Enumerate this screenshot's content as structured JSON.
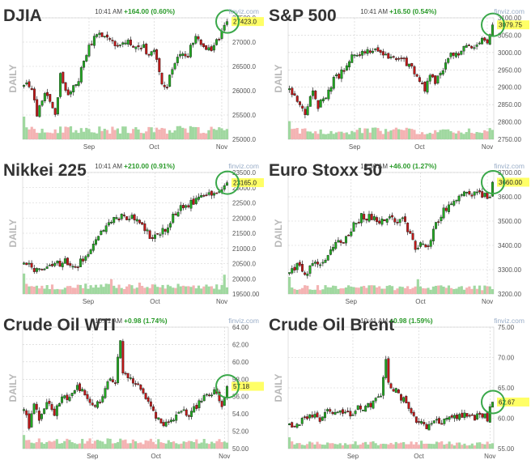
{
  "colors": {
    "up": "#22aa22",
    "down": "#c01818",
    "wick": "#222222",
    "vol_up": "#8fd18f",
    "vol_down": "#f2a6a6",
    "grid": "#e6e6e6",
    "grid_dash": "#d0d0d0",
    "change": "#2a9a2a",
    "time": "#444444",
    "watermark": "#9aaec8",
    "price_tag": "#ffff66",
    "circle": "#3aa84a",
    "axis_text": "#555555",
    "daily_text": "#b8b8b8"
  },
  "common": {
    "daily_label": "DAILY",
    "watermark": "finviz.com"
  },
  "chart_data": [
    {
      "type": "candlestick",
      "title": "DJIA",
      "time": "10:41 AM",
      "change": "+164.00 (0.60%)",
      "last_price_label": "27423.0",
      "last_price": 27423,
      "ylim": [
        25000,
        27500
      ],
      "yticks": [
        25000,
        25500,
        26000,
        26500,
        27000,
        27500
      ],
      "ytick_labels": [
        "25000.0",
        "25500.0",
        "26000.0",
        "26500.0",
        "27000.0",
        "27500.0"
      ],
      "xtick_labels": [
        "Sep",
        "Oct",
        "Nov"
      ],
      "xtick_positions": [
        25,
        50,
        76
      ],
      "n_candles": 79,
      "anchors": [
        [
          0,
          26150
        ],
        [
          3,
          26050
        ],
        [
          5,
          25500
        ],
        [
          8,
          26000
        ],
        [
          12,
          25550
        ],
        [
          14,
          26300
        ],
        [
          17,
          25900
        ],
        [
          21,
          26250
        ],
        [
          24,
          26800
        ],
        [
          28,
          27200
        ],
        [
          31,
          27100
        ],
        [
          35,
          26950
        ],
        [
          39,
          27050
        ],
        [
          42,
          26950
        ],
        [
          46,
          26900
        ],
        [
          48,
          26750
        ],
        [
          50,
          26850
        ],
        [
          53,
          26100
        ],
        [
          55,
          26050
        ],
        [
          57,
          26500
        ],
        [
          60,
          26800
        ],
        [
          63,
          26750
        ],
        [
          66,
          27100
        ],
        [
          69,
          26900
        ],
        [
          72,
          26850
        ],
        [
          75,
          27050
        ],
        [
          78,
          27423
        ]
      ],
      "vol_level": 0.45,
      "spikes": [
        [
          0,
          1.0
        ],
        [
          3,
          0.55
        ],
        [
          56,
          0.4
        ]
      ]
    },
    {
      "type": "candlestick",
      "title": "S&P 500",
      "time": "10:41 AM",
      "change": "+16.50 (0.54%)",
      "last_price_label": "3079.75",
      "last_price": 3079.75,
      "ylim": [
        2750,
        3100
      ],
      "yticks": [
        2750,
        2800,
        2850,
        2900,
        2950,
        3000,
        3050,
        3100
      ],
      "ytick_labels": [
        "2750.00",
        "2800.00",
        "2850.00",
        "2900.00",
        "2950.00",
        "3000.00",
        "3050.00",
        "3100.00"
      ],
      "xtick_labels": [
        "Sep",
        "Oct",
        "Nov"
      ],
      "xtick_positions": [
        25,
        50,
        76
      ],
      "n_candles": 79,
      "anchors": [
        [
          0,
          2900
        ],
        [
          3,
          2860
        ],
        [
          6,
          2830
        ],
        [
          9,
          2890
        ],
        [
          11,
          2840
        ],
        [
          14,
          2880
        ],
        [
          17,
          2920
        ],
        [
          20,
          2940
        ],
        [
          24,
          2990
        ],
        [
          28,
          3005
        ],
        [
          32,
          3010
        ],
        [
          36,
          2995
        ],
        [
          40,
          2990
        ],
        [
          44,
          2975
        ],
        [
          47,
          2960
        ],
        [
          49,
          2930
        ],
        [
          52,
          2895
        ],
        [
          54,
          2940
        ],
        [
          56,
          2920
        ],
        [
          59,
          2950
        ],
        [
          62,
          2995
        ],
        [
          65,
          3000
        ],
        [
          68,
          3020
        ],
        [
          71,
          3015
        ],
        [
          74,
          3040
        ],
        [
          76,
          3035
        ],
        [
          78,
          3079.75
        ]
      ],
      "vol_level": 0.4,
      "spikes": [
        [
          0,
          0.8
        ],
        [
          3,
          0.5
        ]
      ]
    },
    {
      "type": "candlestick",
      "title": "Nikkei 225",
      "time": "10:41 AM",
      "change": "+210.00 (0.91%)",
      "last_price_label": "23165.0",
      "last_price": 23165,
      "ylim": [
        19500,
        23500
      ],
      "yticks": [
        19500,
        20000,
        20500,
        21000,
        21500,
        22000,
        22500,
        23000,
        23500
      ],
      "ytick_labels": [
        "19500.00",
        "20000.0",
        "20500.0",
        "21000.0",
        "21500.0",
        "22000.0",
        "22500.0",
        "23000.0",
        "23500.0"
      ],
      "xtick_labels": [
        "Sep",
        "Oct",
        "Nov"
      ],
      "xtick_positions": [
        25,
        51,
        77
      ],
      "n_candles": 80,
      "anchors": [
        [
          0,
          20550
        ],
        [
          4,
          20300
        ],
        [
          8,
          20400
        ],
        [
          12,
          20450
        ],
        [
          16,
          20550
        ],
        [
          20,
          20350
        ],
        [
          23,
          20650
        ],
        [
          26,
          21000
        ],
        [
          30,
          21500
        ],
        [
          34,
          21900
        ],
        [
          37,
          22050
        ],
        [
          41,
          22050
        ],
        [
          45,
          21950
        ],
        [
          47,
          21700
        ],
        [
          49,
          21300
        ],
        [
          52,
          21450
        ],
        [
          55,
          21600
        ],
        [
          58,
          22050
        ],
        [
          62,
          22400
        ],
        [
          66,
          22550
        ],
        [
          70,
          22750
        ],
        [
          74,
          22900
        ],
        [
          77,
          22900
        ],
        [
          79,
          23165
        ]
      ],
      "vol_level": 0.35,
      "spikes": [
        [
          0,
          0.9
        ],
        [
          34,
          0.65
        ],
        [
          45,
          0.5
        ],
        [
          78,
          0.85
        ]
      ]
    },
    {
      "type": "candlestick",
      "title": "Euro Stoxx 50",
      "time": "10:36 AM",
      "change": "+46.00 (1.27%)",
      "last_price_label": "3660.00",
      "last_price": 3660,
      "ylim": [
        3200,
        3700
      ],
      "yticks": [
        3200,
        3300,
        3400,
        3500,
        3600,
        3700
      ],
      "ytick_labels": [
        "3200.00",
        "3300.00",
        "3400.00",
        "3500.00",
        "3600.00",
        "3700.00"
      ],
      "xtick_labels": [
        "Sep",
        "Oct",
        "Nov"
      ],
      "xtick_positions": [
        24,
        51,
        77
      ],
      "n_candles": 80,
      "anchors": [
        [
          0,
          3290
        ],
        [
          3,
          3320
        ],
        [
          6,
          3270
        ],
        [
          9,
          3330
        ],
        [
          12,
          3320
        ],
        [
          15,
          3360
        ],
        [
          18,
          3400
        ],
        [
          21,
          3420
        ],
        [
          24,
          3470
        ],
        [
          28,
          3520
        ],
        [
          32,
          3515
        ],
        [
          36,
          3500
        ],
        [
          40,
          3510
        ],
        [
          44,
          3500
        ],
        [
          47,
          3450
        ],
        [
          49,
          3380
        ],
        [
          52,
          3420
        ],
        [
          54,
          3390
        ],
        [
          56,
          3470
        ],
        [
          60,
          3540
        ],
        [
          64,
          3580
        ],
        [
          68,
          3610
        ],
        [
          72,
          3615
        ],
        [
          76,
          3610
        ],
        [
          78,
          3600
        ],
        [
          79,
          3660
        ]
      ],
      "vol_level": 0.3,
      "spikes": [
        [
          0,
          0.75
        ],
        [
          50,
          0.65
        ]
      ]
    },
    {
      "type": "candlestick",
      "title": "Crude Oil WTI",
      "time": "10:41 AM",
      "change": "+0.98 (1.74%)",
      "last_price_label": "57.18",
      "last_price": 57.18,
      "ylim": [
        50,
        64
      ],
      "yticks": [
        50,
        52,
        54,
        56,
        58,
        60,
        62,
        64
      ],
      "ytick_labels": [
        "50.00",
        "52.00",
        "54.00",
        "56.00",
        "58.00",
        "60.00",
        "62.00",
        "64.00"
      ],
      "xtick_labels": [
        "Sep",
        "Oct",
        "Nov"
      ],
      "xtick_positions": [
        27,
        52,
        79
      ],
      "n_candles": 81,
      "anchors": [
        [
          0,
          54.5
        ],
        [
          2,
          52.5
        ],
        [
          4,
          55
        ],
        [
          6,
          53.5
        ],
        [
          9,
          55.5
        ],
        [
          12,
          54
        ],
        [
          15,
          56
        ],
        [
          18,
          56
        ],
        [
          21,
          57.5
        ],
        [
          24,
          56
        ],
        [
          27,
          55
        ],
        [
          30,
          55.5
        ],
        [
          33,
          57.5
        ],
        [
          36,
          58
        ],
        [
          38,
          62.5
        ],
        [
          39,
          59
        ],
        [
          41,
          58.5
        ],
        [
          44,
          57.5
        ],
        [
          47,
          56
        ],
        [
          50,
          55
        ],
        [
          52,
          53.5
        ],
        [
          54,
          53
        ],
        [
          56,
          53
        ],
        [
          59,
          53.5
        ],
        [
          62,
          54.5
        ],
        [
          65,
          54
        ],
        [
          68,
          55
        ],
        [
          72,
          56
        ],
        [
          75,
          56.5
        ],
        [
          78,
          55
        ],
        [
          80,
          57.18
        ]
      ],
      "vol_level": 0.35,
      "spikes": [
        [
          0,
          0.6
        ],
        [
          40,
          0.4
        ]
      ]
    },
    {
      "type": "candlestick",
      "title": "Crude Oil Brent",
      "time": "10:41 AM",
      "change": "+0.98 (1.59%)",
      "last_price_label": "62.67",
      "last_price": 62.67,
      "ylim": [
        55,
        75
      ],
      "yticks": [
        55,
        60,
        65,
        70,
        75
      ],
      "ytick_labels": [
        "55.00",
        "60.00",
        "65.00",
        "70.00",
        "75.00"
      ],
      "xtick_labels": [
        "Sep",
        "Oct",
        "Nov"
      ],
      "xtick_positions": [
        25,
        51,
        79
      ],
      "n_candles": 81,
      "anchors": [
        [
          0,
          59
        ],
        [
          3,
          58.5
        ],
        [
          6,
          60
        ],
        [
          9,
          60.5
        ],
        [
          12,
          60
        ],
        [
          15,
          61.5
        ],
        [
          18,
          60.5
        ],
        [
          21,
          61
        ],
        [
          24,
          60.5
        ],
        [
          27,
          61.5
        ],
        [
          30,
          62
        ],
        [
          33,
          62.5
        ],
        [
          36,
          64
        ],
        [
          38,
          70
        ],
        [
          39,
          66
        ],
        [
          42,
          64.5
        ],
        [
          45,
          63
        ],
        [
          48,
          61
        ],
        [
          50,
          59.5
        ],
        [
          52,
          59
        ],
        [
          55,
          58.5
        ],
        [
          58,
          59.5
        ],
        [
          61,
          59.5
        ],
        [
          64,
          60
        ],
        [
          68,
          60.5
        ],
        [
          72,
          60
        ],
        [
          76,
          60.5
        ],
        [
          78,
          60
        ],
        [
          80,
          62.67
        ]
      ],
      "vol_level": 0.25,
      "spikes": [
        [
          0,
          0.5
        ],
        [
          52,
          0.35
        ]
      ]
    }
  ]
}
